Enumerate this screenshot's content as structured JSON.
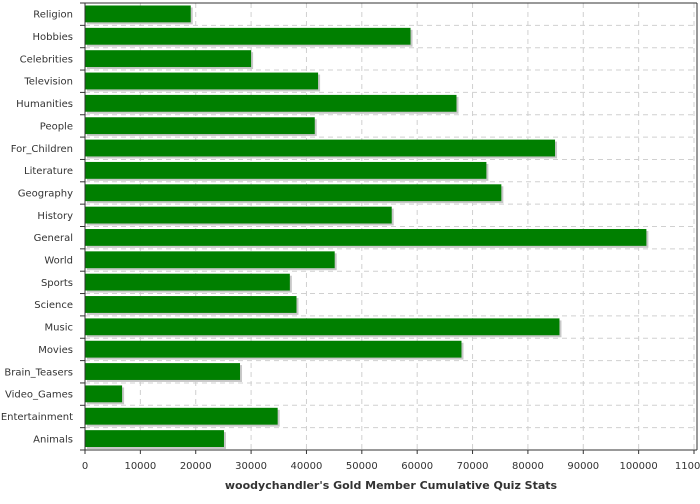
{
  "chart_data": {
    "type": "bar",
    "orientation": "horizontal",
    "title": "",
    "xlabel": "woodychandler's Gold Member Cumulative Quiz Stats",
    "ylabel": "",
    "xlim": [
      0,
      110000
    ],
    "x_ticks": [
      "0",
      "10000",
      "20000",
      "30000",
      "40000",
      "50000",
      "60000",
      "70000",
      "80000",
      "90000",
      "100000",
      "110000"
    ],
    "grid": true,
    "bar_color": "#007f00",
    "shadow_color": "#c8c8c8",
    "categories": [
      "Religion",
      "Hobbies",
      "Celebrities",
      "Television",
      "Humanities",
      "People",
      "For_Children",
      "Literature",
      "Geography",
      "History",
      "General",
      "World",
      "Sports",
      "Science",
      "Music",
      "Movies",
      "Brain_Teasers",
      "Video_Games",
      "Entertainment",
      "Animals"
    ],
    "values": [
      19100,
      58800,
      30000,
      42100,
      67100,
      41500,
      84900,
      72500,
      75200,
      55400,
      101400,
      45100,
      37000,
      38200,
      85700,
      68000,
      28000,
      6700,
      34800,
      25100
    ]
  }
}
